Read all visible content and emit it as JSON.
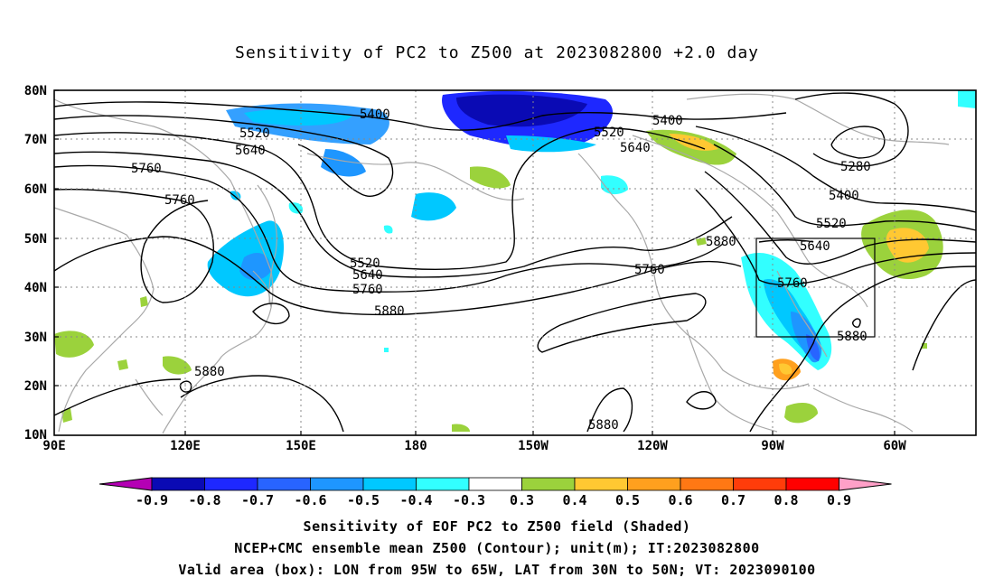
{
  "title": "Sensitivity of PC2 to Z500 at 2023082800 +2.0 day",
  "lat_labels": [
    "80N",
    "70N",
    "60N",
    "50N",
    "40N",
    "30N",
    "20N",
    "10N"
  ],
  "lon_labels": [
    "90E",
    "120E",
    "150E",
    "180",
    "150W",
    "120W",
    "90W",
    "60W"
  ],
  "contour_labels": [
    "5400",
    "5520",
    "5640",
    "5760",
    "5760",
    "5280",
    "5400",
    "5520",
    "5640",
    "5760",
    "5880",
    "5520",
    "5640",
    "5760",
    "5880",
    "5880",
    "5880",
    "5880",
    "5400",
    "5520",
    "5640",
    "5760"
  ],
  "colorbar": {
    "labels": [
      "-0.9",
      "-0.8",
      "-0.7",
      "-0.6",
      "-0.5",
      "-0.4",
      "-0.3",
      "0.3",
      "0.4",
      "0.5",
      "0.6",
      "0.7",
      "0.8",
      "0.9"
    ],
    "colors": [
      "#0a0ab4",
      "#1e28ff",
      "#2864ff",
      "#1e96ff",
      "#00c8ff",
      "#32ffff",
      "#ffffff",
      "#9bd23c",
      "#ffc832",
      "#ffa01e",
      "#ff7814",
      "#ff3c0a",
      "#ff0000"
    ],
    "low_end_color": "#b400b4",
    "high_end_color": "#ffa0c8"
  },
  "box": {
    "text": "Valid area (box): LON from 95W to 65W, LAT from 30N to 50N; VT: 2023090100"
  },
  "footer": {
    "line1": "Sensitivity of EOF PC2 to Z500 field (Shaded)",
    "line2": "NCEP+CMC ensemble mean Z500 (Contour); unit(m); IT:2023082800",
    "line3": "Valid area (box): LON from 95W to 65W, LAT from 30N to 50N; VT: 2023090100"
  }
}
